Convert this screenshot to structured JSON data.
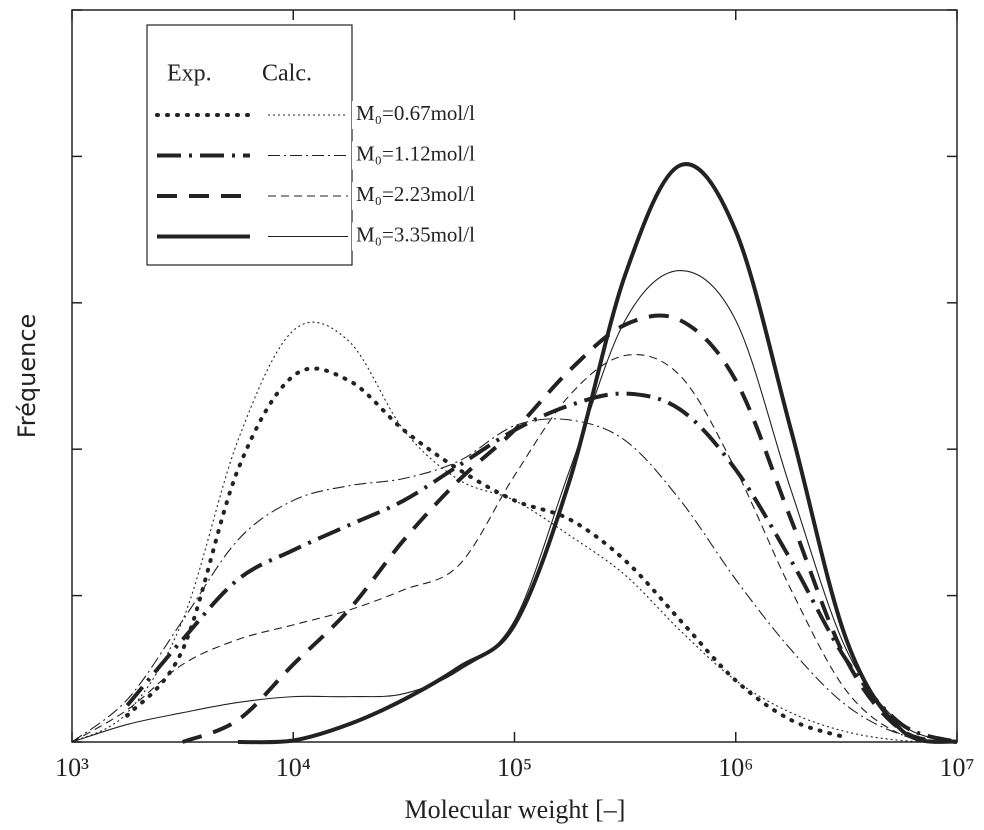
{
  "chart_data": {
    "type": "line",
    "x_label": "Molecular weight [–]",
    "y_label": "Fréquence",
    "legend_headers": [
      "Exp.",
      "Calc."
    ],
    "legend": "upper left",
    "xscale": "log",
    "xlim": [
      1000,
      10000000
    ],
    "xticks": [
      {
        "value": 1000,
        "label": "10³"
      },
      {
        "value": 10000,
        "label": "10⁴"
      },
      {
        "value": 100000,
        "label": "10⁵"
      },
      {
        "value": 1000000,
        "label": "10⁶"
      },
      {
        "value": 10000000,
        "label": "10⁷"
      }
    ],
    "ylim": [
      0,
      5
    ],
    "yticks": [
      0,
      1,
      2,
      3,
      4,
      5
    ],
    "x": [
      1000,
      1778,
      3162,
      5623,
      10000,
      17783,
      31623,
      56234,
      100000,
      177828,
      316228,
      562341,
      1000000,
      1778279,
      3162278,
      5623413,
      10000000
    ],
    "series": [
      {
        "name": "M₀=0.67mol/l",
        "color": "#222222",
        "style": "dotted",
        "exp_values": [
          null,
          0.18,
          0.63,
          1.86,
          2.5,
          2.47,
          2.13,
          1.86,
          1.65,
          1.52,
          1.24,
          0.83,
          0.42,
          0.15,
          0.03,
          null,
          null
        ],
        "calc_values": [
          0,
          0.2,
          0.83,
          2.06,
          2.81,
          2.74,
          2.13,
          1.79,
          1.65,
          1.41,
          1.14,
          0.76,
          0.42,
          0.2,
          0.07,
          0.01,
          0
        ]
      },
      {
        "name": "M₀=1.12mol/l",
        "color": "#222222",
        "style": "dashdot",
        "exp_values": [
          null,
          0.25,
          0.7,
          1.11,
          1.31,
          1.48,
          1.65,
          1.89,
          2.13,
          2.3,
          2.38,
          2.27,
          1.86,
          1.24,
          0.56,
          0.12,
          0
        ],
        "calc_values": [
          0,
          0.29,
          0.83,
          1.38,
          1.65,
          1.75,
          1.8,
          1.92,
          2.16,
          2.2,
          2.06,
          1.65,
          1.11,
          0.63,
          0.25,
          0.05,
          0
        ]
      },
      {
        "name": "M₀=2.23mol/l",
        "color": "#222222",
        "style": "dashed",
        "exp_values": [
          null,
          null,
          0,
          0.15,
          0.53,
          0.9,
          1.38,
          1.79,
          2.13,
          2.54,
          2.85,
          2.88,
          2.47,
          1.52,
          0.56,
          0.08,
          0
        ],
        "calc_values": [
          0,
          0.22,
          0.53,
          0.7,
          0.8,
          0.9,
          1.04,
          1.21,
          1.82,
          2.37,
          2.64,
          2.5,
          1.86,
          1.04,
          0.35,
          0.05,
          0
        ]
      },
      {
        "name": "M₀=3.35mol/l",
        "color": "#222222",
        "style": "solid",
        "exp_values": [
          null,
          null,
          null,
          0,
          0.01,
          0.12,
          0.29,
          0.51,
          0.8,
          1.79,
          3.19,
          3.94,
          3.49,
          2.13,
          0.7,
          0.08,
          0
        ],
        "calc_values": [
          0,
          0.12,
          0.2,
          0.27,
          0.31,
          0.31,
          0.33,
          0.49,
          0.83,
          1.86,
          2.88,
          3.22,
          2.88,
          1.72,
          0.63,
          0.12,
          0
        ]
      }
    ]
  }
}
